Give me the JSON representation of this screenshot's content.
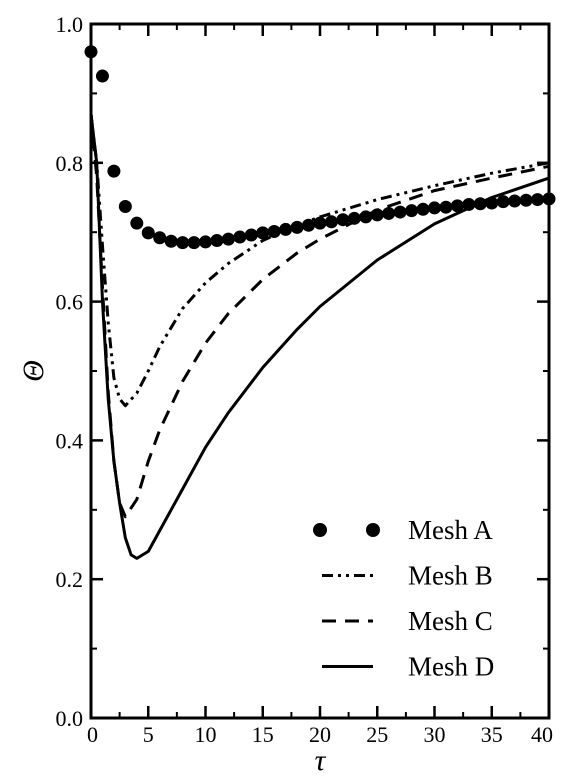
{
  "chart_data": {
    "type": "line",
    "title": "",
    "xlabel": "τ",
    "ylabel": "Θ",
    "xlim": [
      0,
      40
    ],
    "ylim": [
      0.0,
      1.0
    ],
    "xticks": [
      0,
      5,
      10,
      15,
      20,
      25,
      30,
      35,
      40
    ],
    "yticks": [
      0.0,
      0.2,
      0.4,
      0.6,
      0.8,
      1.0
    ],
    "xtick_labels": [
      "0",
      "5",
      "10",
      "15",
      "20",
      "25",
      "30",
      "35",
      "40"
    ],
    "ytick_labels": [
      "0.0",
      "0.2",
      "0.4",
      "0.6",
      "0.8",
      "1.0"
    ],
    "grid": false,
    "legend_position": "bottom-right",
    "series": [
      {
        "name": "Mesh A",
        "style": "markers",
        "x": [
          0,
          1,
          2,
          3,
          4,
          5,
          6,
          7,
          8,
          9,
          10,
          11,
          12,
          13,
          14,
          15,
          16,
          17,
          18,
          19,
          20,
          21,
          22,
          23,
          24,
          25,
          26,
          27,
          28,
          29,
          30,
          31,
          32,
          33,
          34,
          35,
          36,
          37,
          38,
          39,
          40
        ],
        "y": [
          0.96,
          0.925,
          0.788,
          0.737,
          0.713,
          0.699,
          0.692,
          0.687,
          0.685,
          0.685,
          0.686,
          0.688,
          0.69,
          0.693,
          0.696,
          0.699,
          0.701,
          0.704,
          0.707,
          0.71,
          0.713,
          0.715,
          0.718,
          0.72,
          0.722,
          0.725,
          0.727,
          0.729,
          0.731,
          0.733,
          0.735,
          0.736,
          0.738,
          0.74,
          0.741,
          0.742,
          0.744,
          0.745,
          0.746,
          0.747,
          0.748
        ]
      },
      {
        "name": "Mesh B",
        "style": "dash-dot-dot",
        "x": [
          0,
          0.5,
          1,
          1.5,
          2,
          2.5,
          3,
          4,
          5,
          6,
          8,
          10,
          12,
          15,
          18,
          20,
          25,
          30,
          35,
          40
        ],
        "y": [
          0.87,
          0.8,
          0.68,
          0.57,
          0.49,
          0.46,
          0.45,
          0.468,
          0.5,
          0.535,
          0.59,
          0.627,
          0.655,
          0.688,
          0.71,
          0.722,
          0.747,
          0.767,
          0.785,
          0.8
        ]
      },
      {
        "name": "Mesh C",
        "style": "dashed",
        "x": [
          0,
          0.5,
          1,
          1.5,
          2,
          2.5,
          3,
          4,
          5,
          6,
          8,
          10,
          12,
          15,
          18,
          20,
          25,
          30,
          35,
          40
        ],
        "y": [
          0.87,
          0.78,
          0.62,
          0.47,
          0.37,
          0.31,
          0.29,
          0.315,
          0.37,
          0.415,
          0.485,
          0.54,
          0.583,
          0.632,
          0.67,
          0.69,
          0.732,
          0.76,
          0.778,
          0.795
        ]
      },
      {
        "name": "Mesh D",
        "style": "solid",
        "x": [
          0,
          0.5,
          1,
          1.5,
          2,
          2.5,
          3,
          3.5,
          4,
          5,
          6,
          8,
          10,
          12,
          15,
          18,
          20,
          25,
          30,
          35,
          40
        ],
        "y": [
          0.87,
          0.8,
          0.6,
          0.46,
          0.37,
          0.31,
          0.26,
          0.235,
          0.23,
          0.24,
          0.27,
          0.33,
          0.39,
          0.44,
          0.505,
          0.56,
          0.593,
          0.66,
          0.712,
          0.75,
          0.778
        ]
      }
    ]
  }
}
